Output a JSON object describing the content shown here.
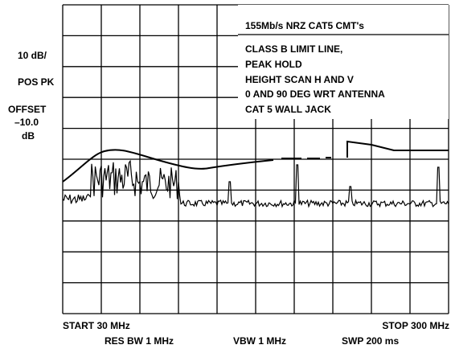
{
  "screen": {
    "annotation": [
      "155Mb/s NRZ CAT5 CMT's",
      "CLASS B LIMIT LINE,",
      "PEAK HOLD",
      "HEIGHT SCAN H AND V",
      "0 AND 90 DEG WRT ANTENNA",
      "CAT 5 WALL JACK"
    ],
    "left_labels": [
      "10 dB/",
      "POS PK",
      "OFFSET",
      "–10.0",
      "dB"
    ],
    "start": "START 30 MHz",
    "stop": "STOP 300 MHz",
    "res_bw": "RES BW 1 MHz",
    "vbw": "VBW 1 MHz",
    "sweep": "SWP 200 ms"
  }
}
